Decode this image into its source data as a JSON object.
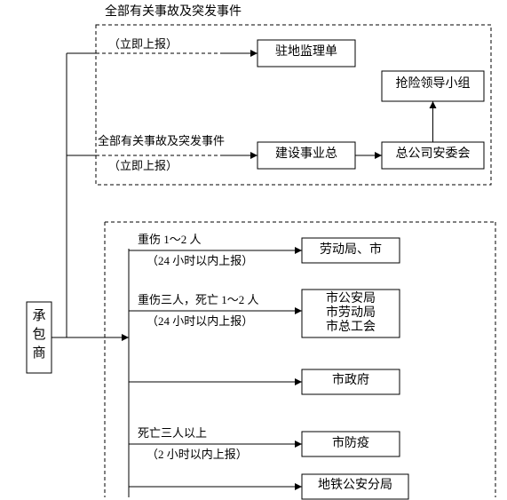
{
  "colors": {
    "ink": "#000000",
    "bg": "#ffffff"
  },
  "box_stroke": 1,
  "dash_stroke": 1,
  "dash_pattern": "4 3",
  "fontsize": 14,
  "fontsize_small": 13,
  "line_height": 16,
  "contractor": "承\n包\n商",
  "top_title": "全部有关事故及突发事件",
  "top": {
    "label_line": "（立即上报）",
    "box_jianli": "驻地监理单",
    "label2a": "全部有关事故及突发事件",
    "label2b": "（立即上报）",
    "box_jianshi": "建设事业总",
    "box_anwei": "总公司安委会",
    "box_qiangxian": "抢险领导小组"
  },
  "bottom": {
    "case1a": "重伤 1～2 人",
    "case1b": "（24 小时以内上报）",
    "box1": "劳动局、市",
    "case2a": "重伤三人，死亡 1～2 人",
    "case2b": "（24 小时以内上报）",
    "box2": "市公安局\n市劳动局\n市总工会",
    "box3": "市政府",
    "case4a": "死亡三人以上",
    "case4b": "（2 小时以内上报）",
    "box4": "市防疫",
    "box5": "地铁公安分局"
  }
}
